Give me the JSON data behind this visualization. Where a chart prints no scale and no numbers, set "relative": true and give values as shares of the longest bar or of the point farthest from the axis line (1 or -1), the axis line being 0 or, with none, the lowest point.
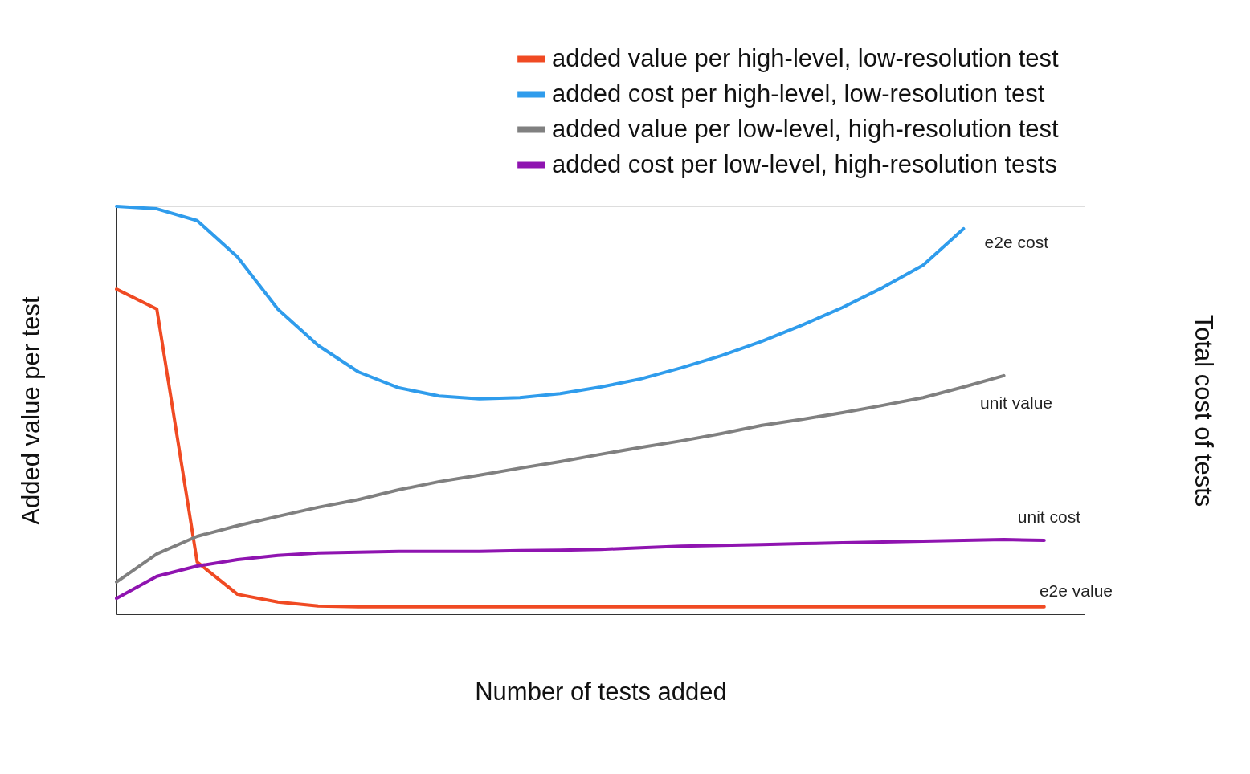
{
  "chart_data": {
    "type": "line",
    "relative": true,
    "xlabel": "Number of tests added",
    "ylabel": "Added value per test",
    "y2label": "Total cost of tests",
    "legend": "top right",
    "grid": false,
    "marker": "none",
    "line_style": "solid",
    "categories": [
      null,
      null,
      null,
      null,
      null,
      null,
      null,
      null,
      null,
      null,
      null,
      null,
      null,
      null,
      null,
      null,
      null,
      null,
      null,
      null,
      null,
      null,
      null,
      null,
      null
    ],
    "series": [
      {
        "name": "added value per high-level, low-resolution test",
        "color": "#f04a23",
        "values": [
          0.797,
          0.748,
          0.128,
          0.049,
          0.03,
          0.02,
          0.018,
          0.018,
          0.018,
          0.018,
          0.018,
          0.018,
          0.018,
          0.018,
          0.018,
          0.018,
          0.018,
          0.018,
          0.018,
          0.018,
          0.018,
          0.018,
          0.018,
          0.018,
          null
        ]
      },
      {
        "name": "added cost per high-level, low-resolution test",
        "color": "#2f9cec",
        "values": [
          1.0,
          0.994,
          0.965,
          0.876,
          0.748,
          0.659,
          0.594,
          0.555,
          0.535,
          0.528,
          0.531,
          0.541,
          0.557,
          0.577,
          0.604,
          0.634,
          0.669,
          0.709,
          0.752,
          0.801,
          0.856,
          0.945,
          null,
          null,
          null
        ]
      },
      {
        "name": "added value per low-level, high-resolution test",
        "color": "#808080",
        "values": [
          0.079,
          0.148,
          0.191,
          0.217,
          0.24,
          0.262,
          0.281,
          0.305,
          0.325,
          0.341,
          0.358,
          0.374,
          0.392,
          0.409,
          0.425,
          0.443,
          0.463,
          0.478,
          0.494,
          0.512,
          0.531,
          0.557,
          0.585,
          null,
          null
        ]
      },
      {
        "name": "added cost per low-level, high-resolution tests",
        "color": "#8f14b0",
        "values": [
          0.039,
          0.093,
          0.118,
          0.134,
          0.144,
          0.15,
          0.152,
          0.154,
          0.154,
          0.154,
          0.156,
          0.157,
          0.159,
          0.163,
          0.167,
          0.169,
          0.171,
          0.173,
          0.175,
          0.177,
          0.179,
          0.181,
          0.183,
          0.181,
          null
        ]
      }
    ],
    "annotations": [
      "e2e cost",
      "unit value",
      "unit cost",
      "e2e value"
    ]
  }
}
